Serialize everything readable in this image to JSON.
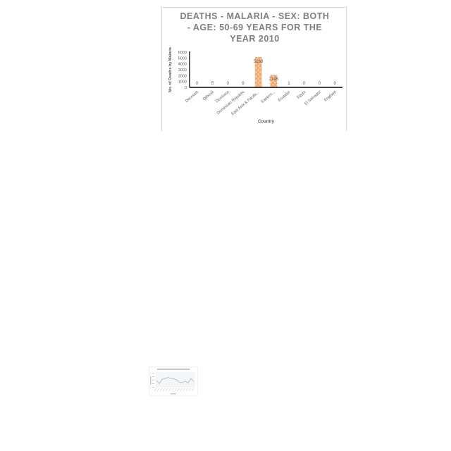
{
  "chart_data": [
    {
      "type": "bar",
      "title": "DEATHS - MALARIA - SEX: BOTH - AGE: 50-69 YEARS FOR THE YEAR 2010",
      "title_lines": [
        "DEATHS - MALARIA - SEX: BOTH",
        "- AGE: 50-69 YEARS FOR THE",
        "YEAR 2010"
      ],
      "xlabel": "Country",
      "ylabel": "No. of Deaths by Malaria",
      "categories": [
        "Denmark",
        "Djibouti",
        "Dominica",
        "Dominican Republic",
        "East Asia & Pacific...",
        "Eastern...",
        "Ecuador",
        "Egypt",
        "El Salvador",
        "England"
      ],
      "values": [
        0,
        5,
        0,
        9,
        5168,
        2145,
        1,
        0,
        0,
        0
      ],
      "data_labels": [
        "0",
        "5",
        "0",
        "9",
        "5168",
        "2145",
        "1",
        "0",
        "0",
        "0"
      ],
      "yticks": [
        "0",
        "1000",
        "2000",
        "3000",
        "4000",
        "5000",
        "6000"
      ],
      "ylim": [
        0,
        6000
      ],
      "bar_color": "#f4a460",
      "grid": false
    },
    {
      "type": "line",
      "title": "",
      "xlabel": "",
      "ylabel": "",
      "values": [
        0.45,
        0.2,
        0.55,
        0.6,
        0.7,
        0.62,
        0.58,
        0.5,
        0.3,
        0.28,
        0.4,
        0.25,
        0.6,
        0.38
      ],
      "line_color": "#a7b5c6"
    }
  ]
}
